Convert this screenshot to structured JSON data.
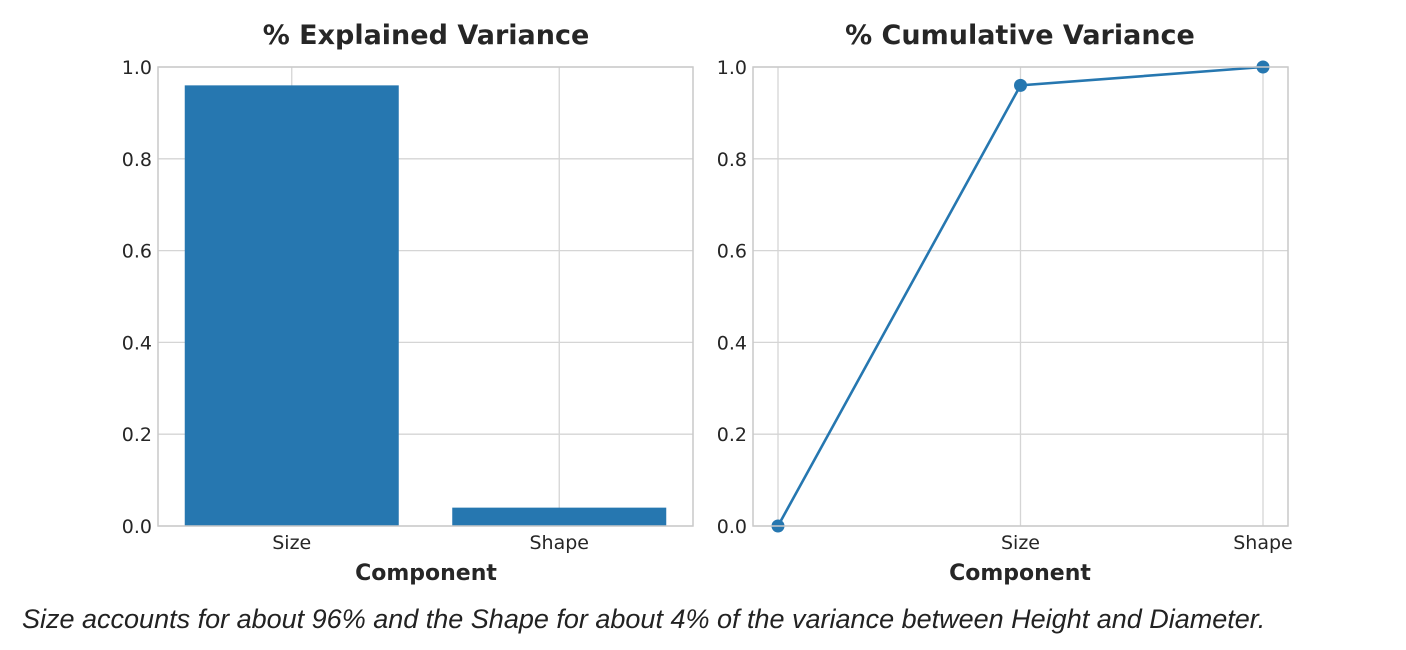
{
  "caption": "Size accounts for about 96% and the Shape for about 4% of the variance between Height and Diameter.",
  "style": {
    "accent": "#2677b0",
    "grid": "#d5d5d5",
    "spine": "#c9c9c9",
    "text": "#262626"
  },
  "chart_data": [
    {
      "type": "bar",
      "title": "% Explained Variance",
      "xlabel": "Component",
      "ylabel": "",
      "categories": [
        "Size",
        "Shape"
      ],
      "values": [
        0.96,
        0.04
      ],
      "ylim": [
        0,
        1.0
      ],
      "yticks": [
        "0.0",
        "0.2",
        "0.4",
        "0.6",
        "0.8",
        "1.0"
      ],
      "grid": true
    },
    {
      "type": "line",
      "title": "% Cumulative Variance",
      "xlabel": "Component",
      "ylabel": "",
      "x": [
        "",
        "Size",
        "Shape"
      ],
      "values": [
        0.0,
        0.96,
        1.0
      ],
      "xticks": [
        "Size",
        "Shape"
      ],
      "ylim": [
        0,
        1.0
      ],
      "yticks": [
        "0.0",
        "0.2",
        "0.4",
        "0.6",
        "0.8",
        "1.0"
      ],
      "grid": true,
      "markers": true
    }
  ]
}
